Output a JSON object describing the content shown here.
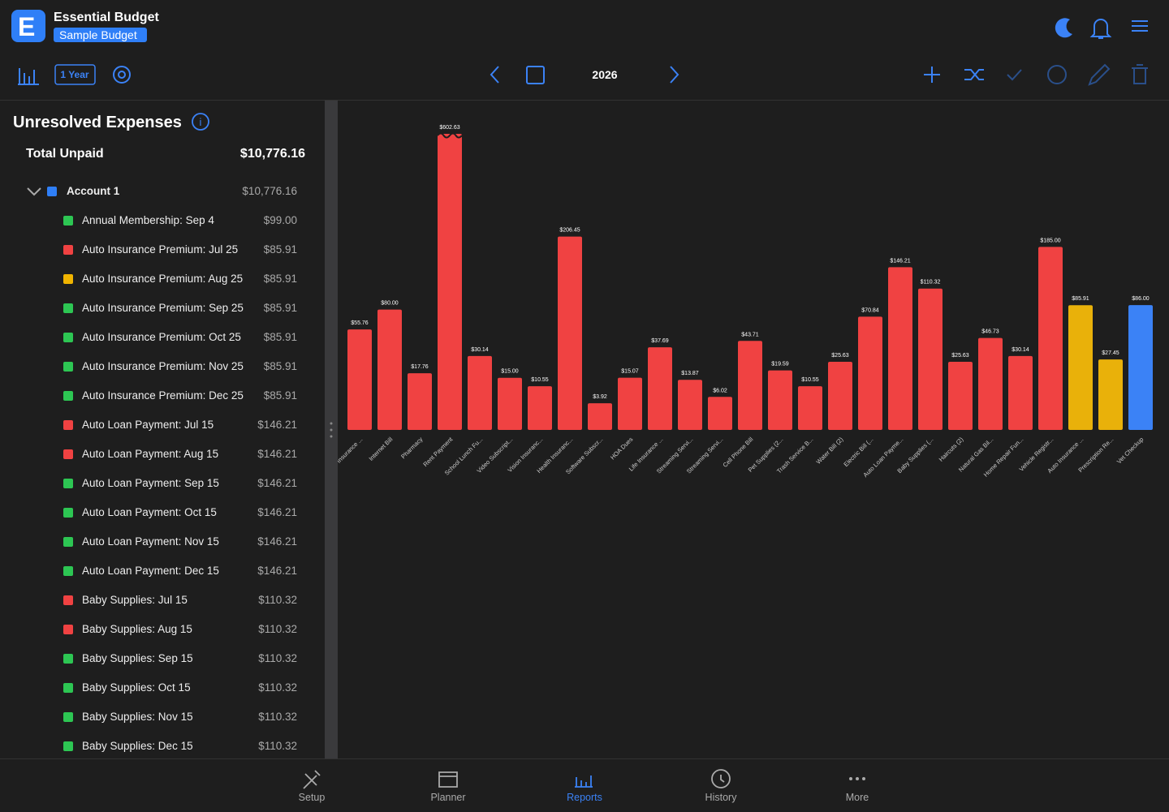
{
  "header": {
    "app_name": "Essential Budget",
    "budget_name": "Sample Budget"
  },
  "toolbar": {
    "range": "1 Year",
    "year": "2026"
  },
  "sidebar": {
    "title": "Unresolved Expenses",
    "total_label": "Total Unpaid",
    "total_value": "$10,776.16",
    "account": {
      "name": "Account 1",
      "amount": "$10,776.16",
      "color": "#2f7ff7"
    },
    "items": [
      {
        "label": "Annual Membership: Sep 4",
        "amount": "$99.00",
        "color": "#2dc653"
      },
      {
        "label": "Auto Insurance Premium: Jul 25",
        "amount": "$85.91",
        "color": "#f04242"
      },
      {
        "label": "Auto Insurance Premium: Aug 25",
        "amount": "$85.91",
        "color": "#f0b400"
      },
      {
        "label": "Auto Insurance Premium: Sep 25",
        "amount": "$85.91",
        "color": "#2dc653"
      },
      {
        "label": "Auto Insurance Premium: Oct 25",
        "amount": "$85.91",
        "color": "#2dc653"
      },
      {
        "label": "Auto Insurance Premium: Nov 25",
        "amount": "$85.91",
        "color": "#2dc653"
      },
      {
        "label": "Auto Insurance Premium: Dec 25",
        "amount": "$85.91",
        "color": "#2dc653"
      },
      {
        "label": "Auto Loan Payment: Jul 15",
        "amount": "$146.21",
        "color": "#f04242"
      },
      {
        "label": "Auto Loan Payment: Aug 15",
        "amount": "$146.21",
        "color": "#f04242"
      },
      {
        "label": "Auto Loan Payment: Sep 15",
        "amount": "$146.21",
        "color": "#2dc653"
      },
      {
        "label": "Auto Loan Payment: Oct 15",
        "amount": "$146.21",
        "color": "#2dc653"
      },
      {
        "label": "Auto Loan Payment: Nov 15",
        "amount": "$146.21",
        "color": "#2dc653"
      },
      {
        "label": "Auto Loan Payment: Dec 15",
        "amount": "$146.21",
        "color": "#2dc653"
      },
      {
        "label": "Baby Supplies: Jul 15",
        "amount": "$110.32",
        "color": "#f04242"
      },
      {
        "label": "Baby Supplies: Aug 15",
        "amount": "$110.32",
        "color": "#f04242"
      },
      {
        "label": "Baby Supplies: Sep 15",
        "amount": "$110.32",
        "color": "#2dc653"
      },
      {
        "label": "Baby Supplies: Oct 15",
        "amount": "$110.32",
        "color": "#2dc653"
      },
      {
        "label": "Baby Supplies: Nov 15",
        "amount": "$110.32",
        "color": "#2dc653"
      },
      {
        "label": "Baby Supplies: Dec 15",
        "amount": "$110.32",
        "color": "#2dc653"
      }
    ]
  },
  "chart_data": {
    "type": "bar",
    "scale": "sqrt",
    "ylim": [
      0,
      484
    ],
    "categories": [
      "Insurance ...",
      "Internet Bill",
      "Pharmacy",
      "Rent Payment",
      "School Lunch Fu...",
      "Video Subscript...",
      "Vision Insuranc...",
      "Health Insuranc...",
      "Software Subscr...",
      "HOA Dues",
      "Life Insurance ...",
      "Streaming Servi...",
      "Streaming Servi...",
      "Cell Phone Bill",
      "Pet Supplies (2...",
      "Trash Service B...",
      "Water Bill (2)",
      "Electric Bill (...",
      "Auto Loan Payme...",
      "Baby Supplies (...",
      "Haircuts (2)",
      "Natural Gas Bil...",
      "Home Repair Fun...",
      "Vehicle Registr...",
      "Auto Insurance ...",
      "Prescription Re...",
      "Vet Checkup"
    ],
    "values": [
      55.76,
      80.0,
      17.76,
      602.63,
      30.14,
      15.0,
      10.55,
      206.45,
      3.92,
      15.07,
      37.69,
      13.87,
      6.02,
      43.71,
      19.59,
      10.55,
      25.63,
      70.84,
      146.21,
      110.32,
      25.63,
      46.73,
      30.14,
      185.0,
      85.91,
      27.45,
      86.0
    ],
    "value_labels": [
      "$55.76",
      "$80.00",
      "$17.76",
      "$602.63",
      "$30.14",
      "$15.00",
      "$10.55",
      "$206.45",
      "$3.92",
      "$15.07",
      "$37.69",
      "$13.87",
      "$6.02",
      "$43.71",
      "$19.59",
      "$10.55",
      "$25.63",
      "$70.84",
      "$146.21",
      "$110.32",
      "$25.63",
      "$46.73",
      "$30.14",
      "$185.00",
      "$85.91",
      "$27.45",
      "$86.00"
    ],
    "colors": [
      "#f04242",
      "#f04242",
      "#f04242",
      "#f04242",
      "#f04242",
      "#f04242",
      "#f04242",
      "#f04242",
      "#f04242",
      "#f04242",
      "#f04242",
      "#f04242",
      "#f04242",
      "#f04242",
      "#f04242",
      "#f04242",
      "#f04242",
      "#f04242",
      "#f04242",
      "#f04242",
      "#f04242",
      "#f04242",
      "#f04242",
      "#f04242",
      "#e9b10a",
      "#e9b10a",
      "#3b82f6"
    ]
  },
  "nav": {
    "items": [
      "Setup",
      "Planner",
      "Reports",
      "History",
      "More"
    ],
    "active": "Reports"
  }
}
